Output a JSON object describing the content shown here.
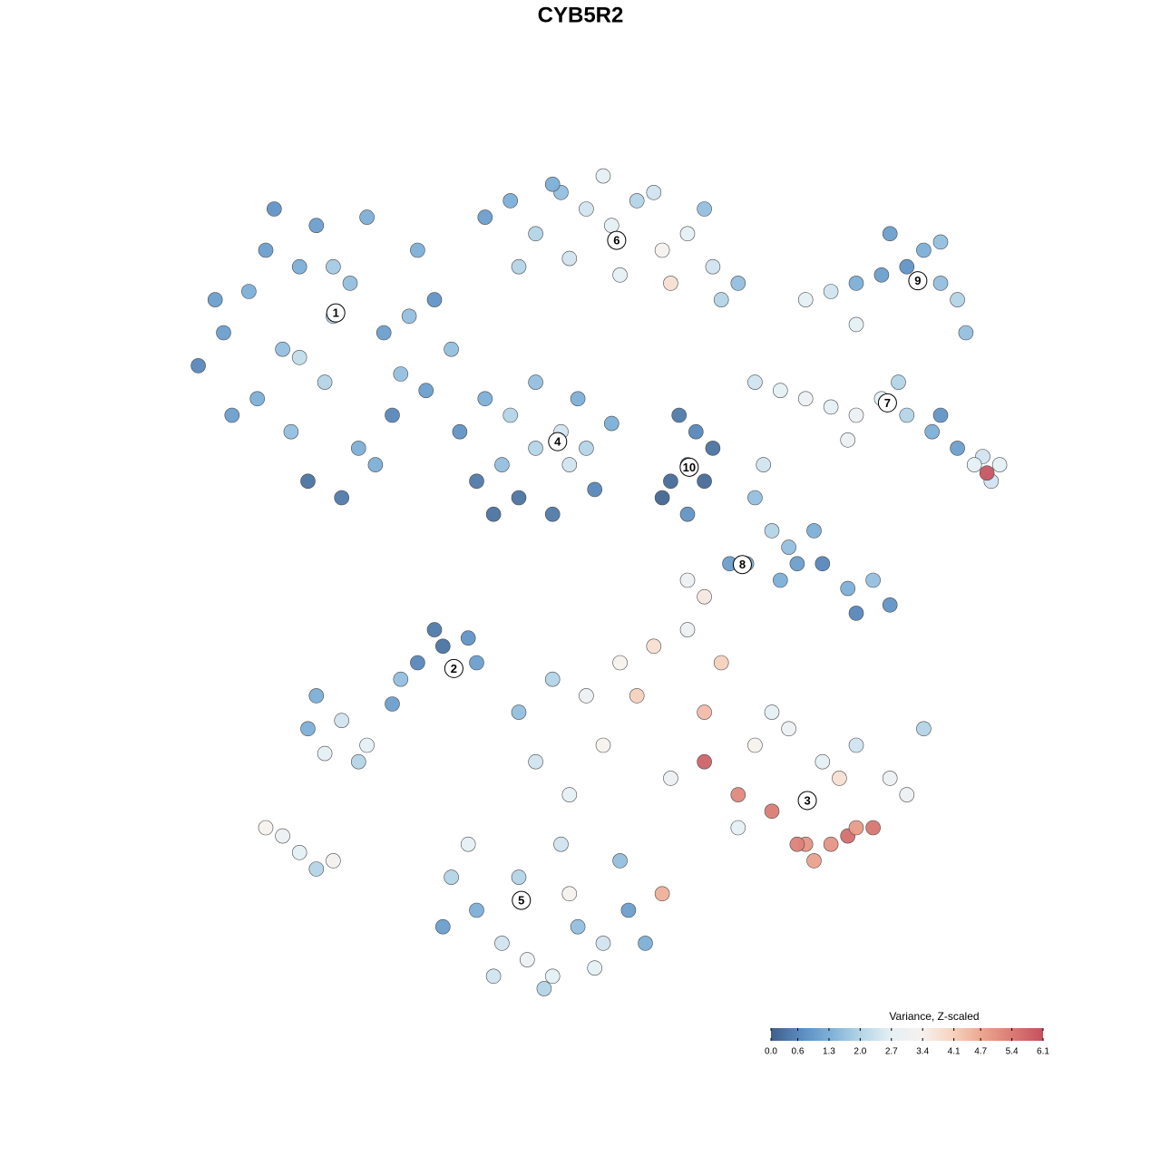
{
  "chart_data": {
    "type": "scatter",
    "title": "CYB5R2",
    "xlim": [
      0,
      100
    ],
    "ylim": [
      0,
      100
    ],
    "x": [
      2,
      5,
      8,
      10,
      12,
      14,
      16,
      18,
      20,
      22,
      24,
      26,
      28,
      30,
      32,
      6,
      9,
      13,
      17,
      21,
      25,
      29,
      4,
      11,
      15,
      19,
      23,
      27,
      14,
      18,
      36,
      39,
      42,
      45,
      48,
      51,
      54,
      57,
      60,
      63,
      66,
      40,
      46,
      52,
      58,
      64,
      44,
      50,
      56,
      62,
      74,
      77,
      80,
      83,
      86,
      88,
      90,
      92,
      93,
      84,
      80,
      90,
      68,
      71,
      74,
      77,
      80,
      83,
      86,
      89,
      92,
      95,
      97,
      79,
      85,
      90,
      94,
      96,
      95.5,
      33,
      36,
      39,
      42,
      45,
      48,
      51,
      35,
      40,
      44,
      49,
      38,
      46,
      42,
      37,
      47,
      58,
      60,
      62,
      61,
      59,
      63,
      57,
      60,
      68,
      70,
      72,
      69,
      71,
      73,
      76,
      79,
      82,
      84,
      75,
      80,
      65,
      67,
      60,
      62,
      16,
      19,
      22,
      25,
      28,
      31,
      34,
      17,
      21,
      26,
      30,
      35,
      15,
      40,
      44,
      48,
      52,
      56,
      60,
      64,
      68,
      72,
      76,
      80,
      84,
      88,
      42,
      50,
      58,
      66,
      74,
      82,
      46,
      54,
      62,
      70,
      78,
      86,
      62,
      66,
      70,
      73,
      75,
      77,
      79,
      80,
      57,
      32,
      35,
      38,
      41,
      44,
      47,
      50,
      53,
      34,
      40,
      46,
      52,
      37,
      43,
      49,
      31,
      55,
      45,
      10,
      12,
      14,
      16,
      18
    ],
    "y": [
      76,
      80,
      85,
      90,
      78,
      88,
      93,
      82,
      86,
      94,
      80,
      75,
      90,
      84,
      78,
      70,
      72,
      68,
      74,
      66,
      70,
      73,
      84,
      95,
      62,
      60,
      64,
      82,
      77,
      88,
      94,
      96,
      92,
      97,
      95,
      93,
      96,
      90,
      92,
      88,
      86,
      88,
      89,
      87,
      86,
      84,
      98,
      99,
      97,
      95,
      84,
      85,
      86,
      87,
      88,
      90,
      86,
      84,
      80,
      92,
      81,
      91,
      74,
      73,
      72,
      71,
      70,
      72,
      70,
      68,
      66,
      65,
      64,
      67,
      74,
      70,
      64,
      62,
      63,
      68,
      72,
      70,
      74,
      68,
      66,
      69,
      62,
      60,
      58,
      61,
      64,
      64,
      66,
      58,
      72,
      62,
      64,
      62,
      68,
      70,
      66,
      60,
      58,
      60,
      56,
      54,
      64,
      50,
      52,
      52,
      49,
      50,
      47,
      56,
      46,
      52,
      52,
      50,
      48,
      36,
      33,
      30,
      35,
      40,
      42,
      43,
      29,
      28,
      38,
      44,
      40,
      32,
      34,
      38,
      36,
      40,
      42,
      44,
      40,
      30,
      32,
      28,
      30,
      26,
      32,
      28,
      30,
      26,
      20,
      18,
      20,
      24,
      36,
      34,
      34,
      26,
      24,
      28,
      24,
      22,
      18,
      16,
      18,
      19,
      20,
      12,
      14,
      10,
      6,
      4,
      2,
      8,
      6,
      10,
      18,
      14,
      12,
      16,
      2,
      0.5,
      3,
      8,
      6,
      18,
      20,
      19,
      17,
      15,
      16
    ],
    "values": [
      0.6,
      1.0,
      1.3,
      1.0,
      1.6,
      1.3,
      1.0,
      2.0,
      1.6,
      1.3,
      1.0,
      1.6,
      1.3,
      0.8,
      1.6,
      1.0,
      1.3,
      1.6,
      2.0,
      1.3,
      0.6,
      1.0,
      1.0,
      0.8,
      0.3,
      0.4,
      1.3,
      1.6,
      2.2,
      1.8,
      1.0,
      1.3,
      2.0,
      1.6,
      2.4,
      2.7,
      2.0,
      3.3,
      2.7,
      2.4,
      1.6,
      2.0,
      2.4,
      2.7,
      3.8,
      2.0,
      1.3,
      2.7,
      2.4,
      1.6,
      2.7,
      2.4,
      1.3,
      1.0,
      0.8,
      1.3,
      1.6,
      2.0,
      1.6,
      1.0,
      2.7,
      1.6,
      2.4,
      2.7,
      3.0,
      2.7,
      3.0,
      2.7,
      2.0,
      1.3,
      1.0,
      2.4,
      2.7,
      3.0,
      2.0,
      0.8,
      2.7,
      2.4,
      6.0,
      0.8,
      1.3,
      2.0,
      1.6,
      2.4,
      2.0,
      1.3,
      0.4,
      0.3,
      0.4,
      0.6,
      1.6,
      2.4,
      2.0,
      0.3,
      1.3,
      0.2,
      0.3,
      0.2,
      0.6,
      0.4,
      0.3,
      0.1,
      0.8,
      1.6,
      2.0,
      1.6,
      2.4,
      1.3,
      1.0,
      0.6,
      1.3,
      1.6,
      0.8,
      1.3,
      0.6,
      1.0,
      1.3,
      3.0,
      3.6,
      1.3,
      2.4,
      2.7,
      1.0,
      0.6,
      0.3,
      0.8,
      2.7,
      2.0,
      1.6,
      0.4,
      1.0,
      1.3,
      1.6,
      2.0,
      3.0,
      3.4,
      3.8,
      3.0,
      4.1,
      3.4,
      3.0,
      2.7,
      2.4,
      3.0,
      2.0,
      2.4,
      3.4,
      3.0,
      2.7,
      5.0,
      5.5,
      2.7,
      4.1,
      4.4,
      2.7,
      3.8,
      3.0,
      5.8,
      5.2,
      5.4,
      5.3,
      4.8,
      5.0,
      5.6,
      4.9,
      4.6,
      2.0,
      1.3,
      2.4,
      3.0,
      2.7,
      1.6,
      2.4,
      1.0,
      2.7,
      2.0,
      3.3,
      1.6,
      2.4,
      2.0,
      2.7,
      1.0,
      1.3,
      2.4,
      3.4,
      3.0,
      2.7,
      2.0,
      3.2
    ],
    "annotations": [
      {
        "label": "1",
        "x": 18.3,
        "y": 82.4
      },
      {
        "label": "2",
        "x": 32.3,
        "y": 39.3
      },
      {
        "label": "3",
        "x": 74.2,
        "y": 23.3
      },
      {
        "label": "4",
        "x": 44.6,
        "y": 66.8
      },
      {
        "label": "5",
        "x": 40.3,
        "y": 11.2
      },
      {
        "label": "6",
        "x": 51.6,
        "y": 91.2
      },
      {
        "label": "7",
        "x": 83.7,
        "y": 71.5
      },
      {
        "label": "8",
        "x": 66.5,
        "y": 51.9
      },
      {
        "label": "9",
        "x": 87.3,
        "y": 86.3
      },
      {
        "label": "10",
        "x": 60.2,
        "y": 63.7
      }
    ],
    "colorbar": {
      "title": "Variance, Z-scaled",
      "lim": [
        0,
        6.1
      ],
      "ticks": [
        {
          "value": 0,
          "label": "0.0"
        },
        0.6,
        1.3,
        {
          "value": 2,
          "label": "2.0"
        },
        2.7,
        3.4,
        4.1,
        4.7,
        5.4,
        6.1
      ],
      "colors": [
        "#3f5f88",
        "#5a8cc0",
        "#7fb2d9",
        "#b6d6e8",
        "#e6f0f5",
        "#f6f1ee",
        "#f7d3c0",
        "#eba58f",
        "#d97a74",
        "#c4505e"
      ]
    }
  }
}
